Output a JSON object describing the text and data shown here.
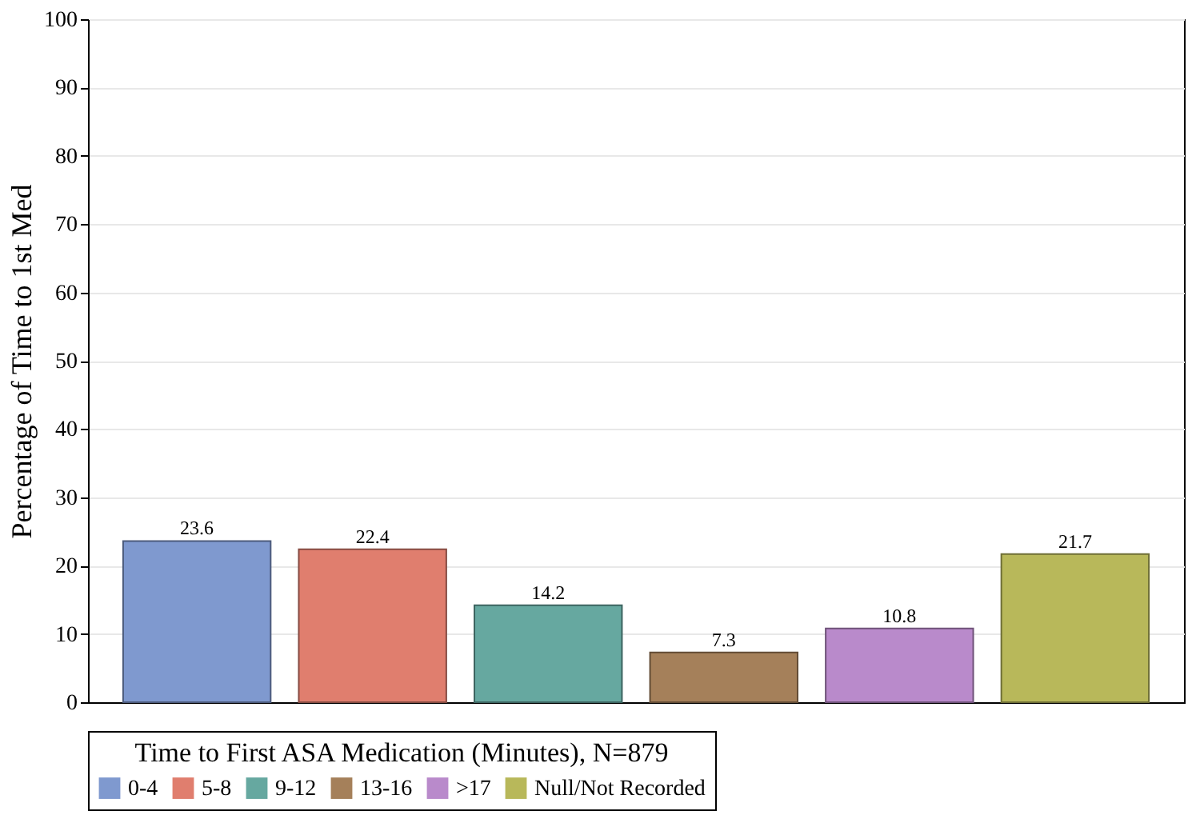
{
  "chart_data": {
    "type": "bar",
    "ylabel": "Percentage of Time to 1st Med",
    "legend_title": "Time to First ASA Medication (Minutes), N=879",
    "categories": [
      null,
      null,
      null,
      null,
      null,
      null
    ],
    "series": [
      {
        "name": "0-4",
        "color": "#7f99cf",
        "values": [
          23.6,
          null,
          null,
          null,
          null,
          null
        ]
      },
      {
        "name": "5-8",
        "color": "#e07e6e",
        "values": [
          null,
          22.4,
          null,
          null,
          null,
          null
        ]
      },
      {
        "name": "9-12",
        "color": "#66a8a0",
        "values": [
          null,
          null,
          14.2,
          null,
          null,
          null
        ]
      },
      {
        "name": "13-16",
        "color": "#a5805a",
        "values": [
          null,
          null,
          null,
          7.3,
          null,
          null
        ]
      },
      {
        "name": ">17",
        "color": "#b98acb",
        "values": [
          null,
          null,
          null,
          null,
          10.8,
          null
        ]
      },
      {
        "name": "Null/Not Recorded",
        "color": "#b8b85a",
        "values": [
          null,
          null,
          null,
          null,
          null,
          21.7
        ]
      }
    ],
    "ylim": [
      0,
      100
    ],
    "yticks": [
      0,
      10,
      20,
      30,
      40,
      50,
      60,
      70,
      80,
      90,
      100
    ],
    "grid": "y",
    "legend": "bottom",
    "tick_labels": "y",
    "data_labels": true
  }
}
